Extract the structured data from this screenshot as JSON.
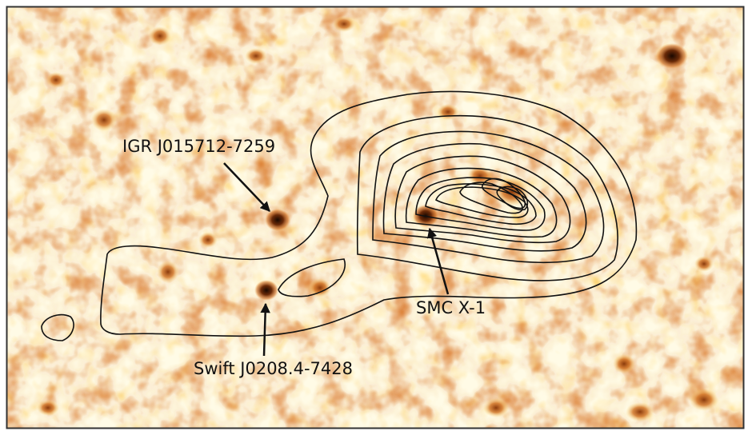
{
  "image": {
    "colormap": [
      "#ffffff",
      "#fff6c8",
      "#ffd873",
      "#f0a040",
      "#c8651a",
      "#6a2a08",
      "#1a0800"
    ],
    "contour_color": "#111111",
    "contour_levels_count": 11,
    "frame_color": "#333333"
  },
  "labels": {
    "igr": "IGR J015712-7259",
    "smc": "SMC X-1",
    "swift": "Swift J0208.4-7428"
  },
  "sources": [
    {
      "name": "IGR J015712-7259",
      "kind": "point-source"
    },
    {
      "name": "SMC X-1",
      "kind": "point-source"
    },
    {
      "name": "Swift J0208.4-7428",
      "kind": "point-source"
    }
  ]
}
